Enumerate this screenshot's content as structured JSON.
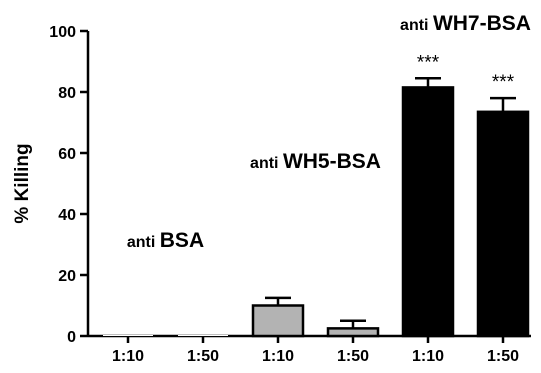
{
  "chart_data": {
    "type": "bar",
    "ylabel": "% Killing",
    "xlabel": "",
    "ylim": [
      0,
      100
    ],
    "yticks": [
      "0",
      "20",
      "40",
      "60",
      "80",
      "100"
    ],
    "categories": [
      "1:10",
      "1:50",
      "1:10",
      "1:50",
      "1:10",
      "1:50"
    ],
    "groups": [
      {
        "prefix": "anti",
        "name": "BSA",
        "color": "#ffffff",
        "bars": [
          0,
          1
        ]
      },
      {
        "prefix": "anti",
        "name": "WH5-BSA",
        "color": "#b3b3b3",
        "bars": [
          2,
          3
        ]
      },
      {
        "prefix": "anti",
        "name": "WH7-BSA",
        "color": "#000000",
        "bars": [
          4,
          5
        ]
      }
    ],
    "values": [
      0,
      0,
      10,
      2.5,
      81.5,
      73.5
    ],
    "errors": [
      0,
      0,
      2.5,
      2.5,
      3,
      4.5
    ],
    "annotations": [
      "",
      "",
      "",
      "",
      "***",
      "***"
    ],
    "grid": false
  }
}
